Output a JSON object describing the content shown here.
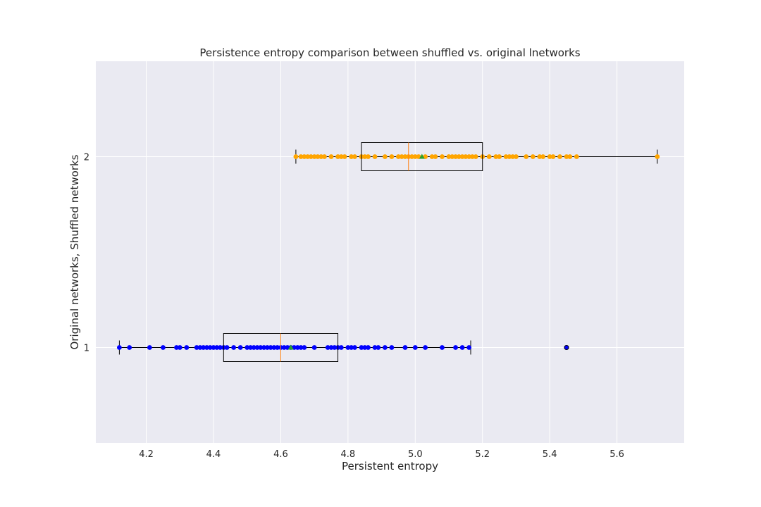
{
  "chart_data": {
    "type": "boxplot",
    "orientation": "horizontal",
    "title": "Persistence entropy comparison between shuffled vs. original lnetworks",
    "xlabel": "Persistent entropy",
    "ylabel": "Original networks, Shuffled networks",
    "xlim": [
      4.05,
      5.8
    ],
    "ylim": [
      0.5,
      2.5
    ],
    "x_ticks": [
      "4.2",
      "4.4",
      "4.6",
      "4.8",
      "5.0",
      "5.2",
      "5.4",
      "5.6"
    ],
    "y_ticks": [
      "1",
      "2"
    ],
    "grid": true,
    "background": "#eaeaf2",
    "series": [
      {
        "position": 1,
        "color": "#0000ff",
        "whisker_low": 4.12,
        "q1": 4.43,
        "median": 4.6,
        "mean": 4.63,
        "q3": 4.77,
        "whisker_high": 5.165,
        "outliers": [
          5.45
        ],
        "points": [
          4.12,
          4.15,
          4.21,
          4.25,
          4.29,
          4.3,
          4.32,
          4.35,
          4.36,
          4.37,
          4.38,
          4.39,
          4.4,
          4.41,
          4.42,
          4.43,
          4.44,
          4.46,
          4.48,
          4.5,
          4.51,
          4.52,
          4.53,
          4.54,
          4.55,
          4.56,
          4.57,
          4.58,
          4.59,
          4.6,
          4.61,
          4.62,
          4.63,
          4.64,
          4.65,
          4.66,
          4.67,
          4.7,
          4.74,
          4.75,
          4.76,
          4.77,
          4.78,
          4.8,
          4.81,
          4.82,
          4.84,
          4.85,
          4.86,
          4.88,
          4.89,
          4.91,
          4.93,
          4.97,
          5.0,
          5.03,
          5.08,
          5.12,
          5.14,
          5.16,
          5.45
        ]
      },
      {
        "position": 2,
        "color": "#ffa500",
        "whisker_low": 4.645,
        "q1": 4.84,
        "median": 4.98,
        "mean": 5.02,
        "q3": 5.2,
        "whisker_high": 5.72,
        "outliers": [],
        "points": [
          4.645,
          4.66,
          4.67,
          4.68,
          4.69,
          4.7,
          4.71,
          4.72,
          4.73,
          4.75,
          4.77,
          4.78,
          4.79,
          4.81,
          4.82,
          4.84,
          4.85,
          4.86,
          4.88,
          4.91,
          4.93,
          4.95,
          4.96,
          4.97,
          4.98,
          4.99,
          5.0,
          5.01,
          5.03,
          5.05,
          5.06,
          5.08,
          5.1,
          5.11,
          5.12,
          5.13,
          5.14,
          5.15,
          5.16,
          5.17,
          5.18,
          5.2,
          5.22,
          5.24,
          5.25,
          5.27,
          5.28,
          5.29,
          5.3,
          5.33,
          5.35,
          5.37,
          5.38,
          5.4,
          5.41,
          5.43,
          5.45,
          5.46,
          5.48,
          5.72
        ]
      }
    ]
  }
}
